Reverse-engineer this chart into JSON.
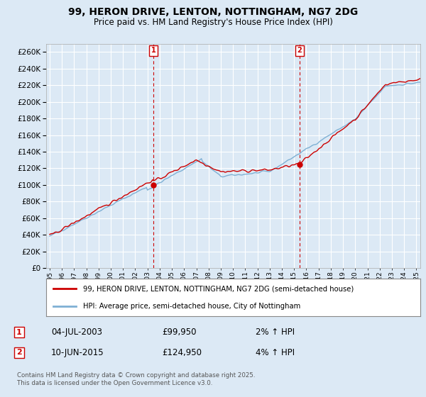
{
  "title": "99, HERON DRIVE, LENTON, NOTTINGHAM, NG7 2DG",
  "subtitle": "Price paid vs. HM Land Registry's House Price Index (HPI)",
  "background_color": "#dce9f5",
  "plot_bg_color": "#dce9f5",
  "legend_label_red": "99, HERON DRIVE, LENTON, NOTTINGHAM, NG7 2DG (semi-detached house)",
  "legend_label_blue": "HPI: Average price, semi-detached house, City of Nottingham",
  "transaction1_date": "04-JUL-2003",
  "transaction1_price": "£99,950",
  "transaction1_pct": "2% ↑ HPI",
  "transaction1_x": 2003.5,
  "transaction1_y": 99950,
  "transaction2_date": "10-JUN-2015",
  "transaction2_price": "£124,950",
  "transaction2_pct": "4% ↑ HPI",
  "transaction2_x": 2015.44,
  "transaction2_y": 124950,
  "footer": "Contains HM Land Registry data © Crown copyright and database right 2025.\nThis data is licensed under the Open Government Licence v3.0.",
  "ylim": [
    0,
    270000
  ],
  "ytick_step": 20000,
  "red_color": "#cc0000",
  "blue_color": "#7eb0d4",
  "xlim_left": 1994.7,
  "xlim_right": 2025.3
}
